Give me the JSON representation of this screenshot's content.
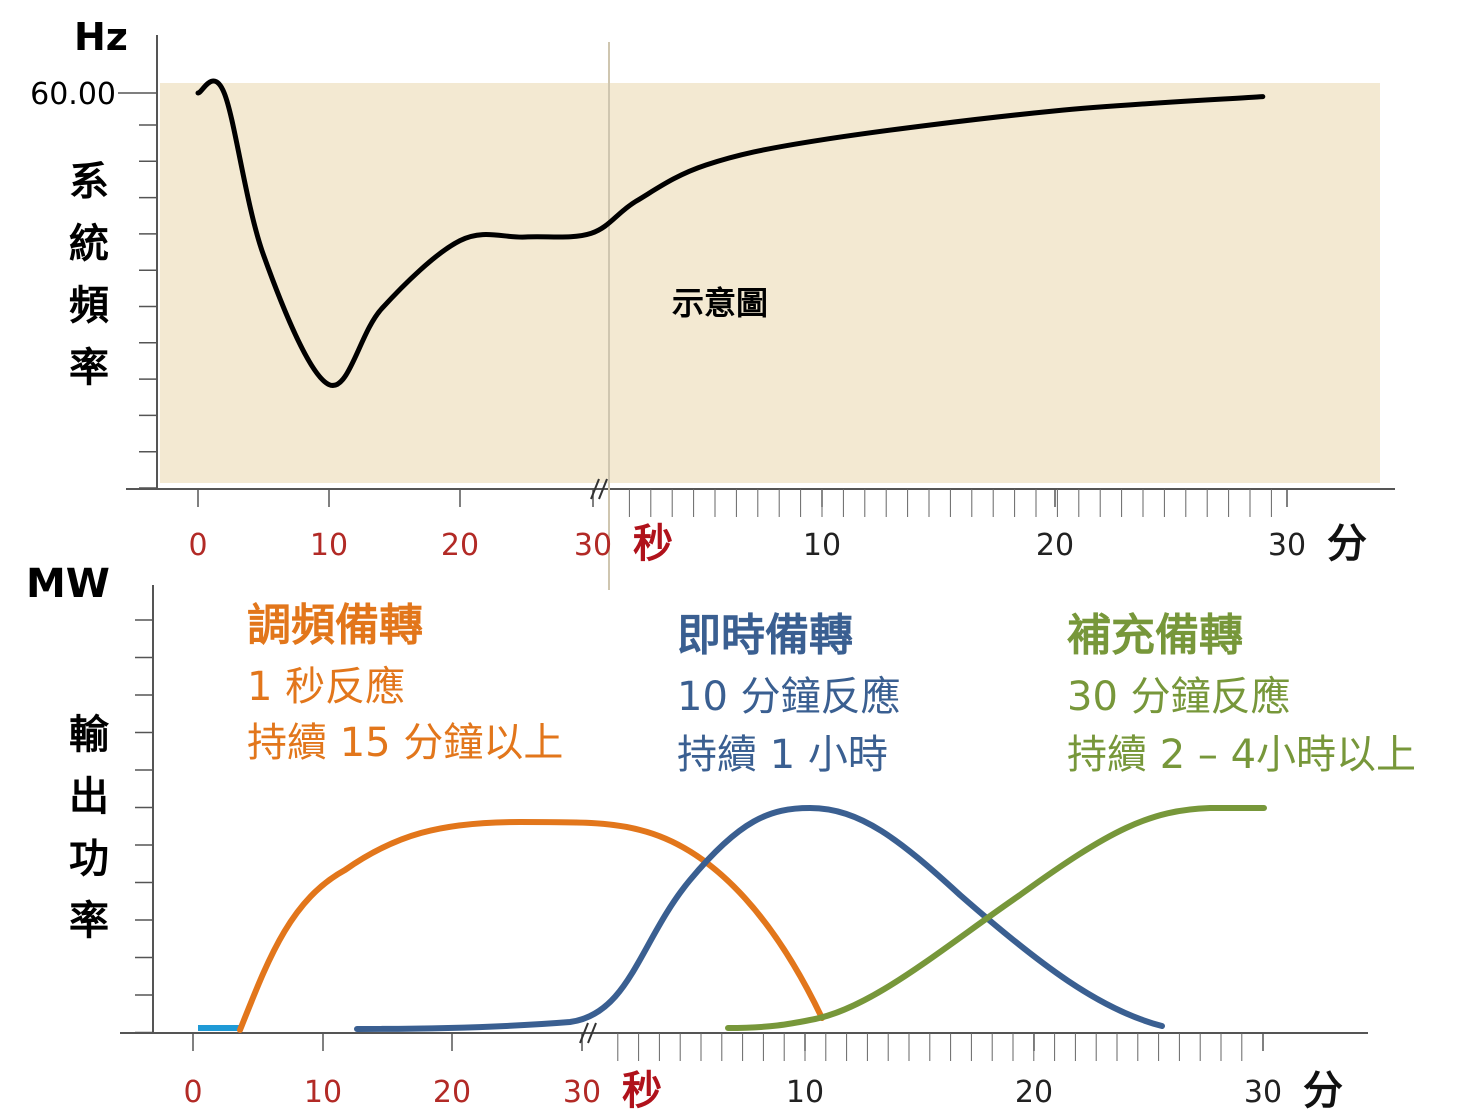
{
  "chart_data": [
    {
      "type": "line",
      "ylabel": "系統頻率",
      "yunit": "Hz",
      "ytick_label": "60.00",
      "annotation": "示意圖",
      "x_axis": {
        "seconds_ticks": [
          "0",
          "10",
          "20",
          "30"
        ],
        "seconds_unit": "秒",
        "minutes_ticks": [
          "10",
          "20",
          "30"
        ],
        "minutes_unit": "分"
      },
      "x_scale": "broken axis: 0–30 seconds, then 0–30 minutes",
      "series": [
        {
          "color": "#000000",
          "x": [
            "0 s",
            "2 s",
            "5 s",
            "10 s",
            "14 s",
            "20 s",
            "25 s",
            "30 s",
            "2 min",
            "5 min",
            "10 min",
            "20 min",
            "29 min"
          ],
          "y": [
            60.0,
            60.0,
            59.55,
            59.19,
            59.4,
            59.59,
            59.6,
            59.61,
            59.7,
            59.8,
            59.87,
            59.95,
            59.99
          ]
        }
      ],
      "background_color": "#f3e9d2"
    },
    {
      "type": "line",
      "ylabel": "輸出功率",
      "yunit": "MW",
      "x_axis": {
        "seconds_ticks": [
          "0",
          "10",
          "20",
          "30"
        ],
        "seconds_unit": "秒",
        "minutes_ticks": [
          "10",
          "20",
          "30"
        ],
        "minutes_unit": "分"
      },
      "x_scale": "broken axis: 0–30 seconds, then 0–30 minutes",
      "series": [
        {
          "name": "調頻備轉",
          "lines": [
            "1 秒反應",
            "持續 15 分鐘以上"
          ],
          "color": "#e2761b"
        },
        {
          "name": "即時備轉",
          "lines": [
            "10 分鐘反應",
            "持續 1 小時"
          ],
          "color": "#3a5f91"
        },
        {
          "name": "補充備轉",
          "lines": [
            "30 分鐘反應",
            "持續 2 – 4小時以上"
          ],
          "color": "#77973a"
        }
      ],
      "baseline_marker_color": "#1f9ad6"
    }
  ]
}
